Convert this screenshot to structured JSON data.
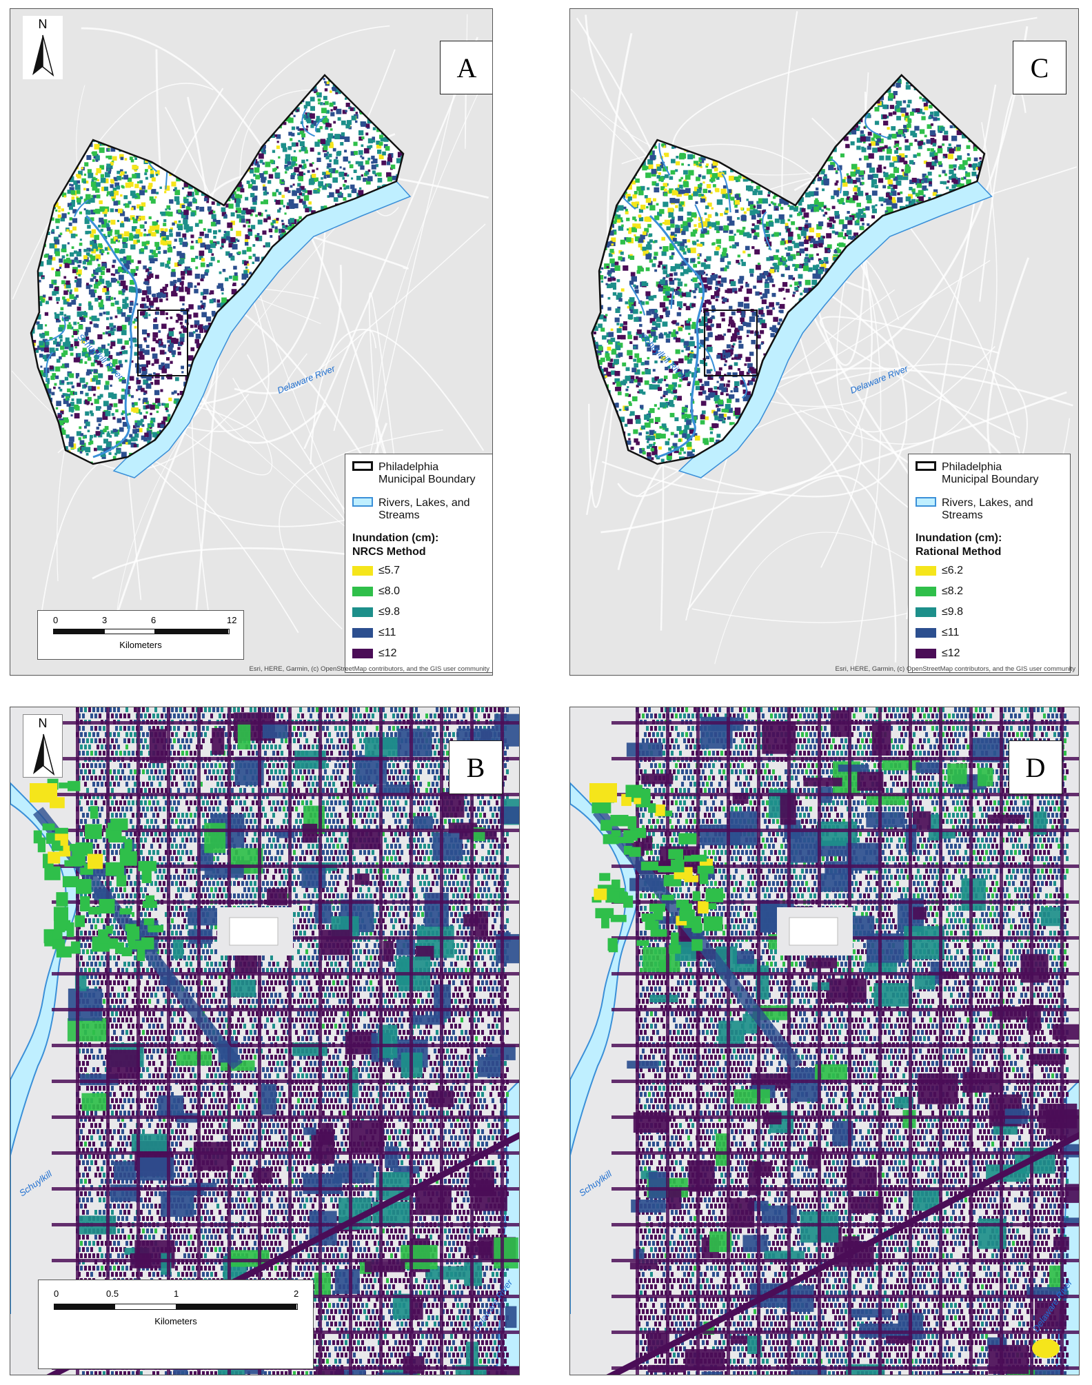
{
  "panels": {
    "A": {
      "label": "A",
      "legend_title_1": "Inundation (cm):",
      "legend_title_2": "NRCS Method",
      "classes": [
        "≤5.7",
        "≤8.0",
        "≤9.8",
        "≤11",
        "≤12"
      ]
    },
    "C": {
      "label": "C",
      "legend_title_1": "Inundation (cm):",
      "legend_title_2": "Rational Method",
      "classes": [
        "≤6.2",
        "≤8.2",
        "≤9.8",
        "≤11",
        "≤12"
      ]
    },
    "B": {
      "label": "B"
    },
    "D": {
      "label": "D"
    }
  },
  "legend_common": {
    "boundary_1": "Philadelphia",
    "boundary_2": "Municipal Boundary",
    "water_1": "Rivers, Lakes, and",
    "water_2": "Streams"
  },
  "north_label": "N",
  "scale_overview": {
    "ticks": [
      "0",
      "3",
      "6",
      "12"
    ],
    "unit": "Kilometers"
  },
  "scale_detail": {
    "ticks": [
      "0",
      "0.5",
      "1",
      "2"
    ],
    "unit": "Kilometers"
  },
  "attribution": "Esri, HERE, Garmin, (c) OpenStreetMap contributors, and the GIS user community",
  "river_labels": {
    "schuylkill": "Schuylkill River",
    "delaware": "Delaware River",
    "schuylkill_short": "Schuylkill",
    "delaware_short": "Delaware River"
  },
  "colors": {
    "c1": "#f5e51b",
    "c2": "#2fbf4a",
    "c3": "#1d8f8a",
    "c4": "#2c4f8f",
    "c5": "#4b0d57",
    "water": "#bfefff",
    "water_stroke": "#3a8fd8",
    "basemap": "#e6e6e6"
  }
}
